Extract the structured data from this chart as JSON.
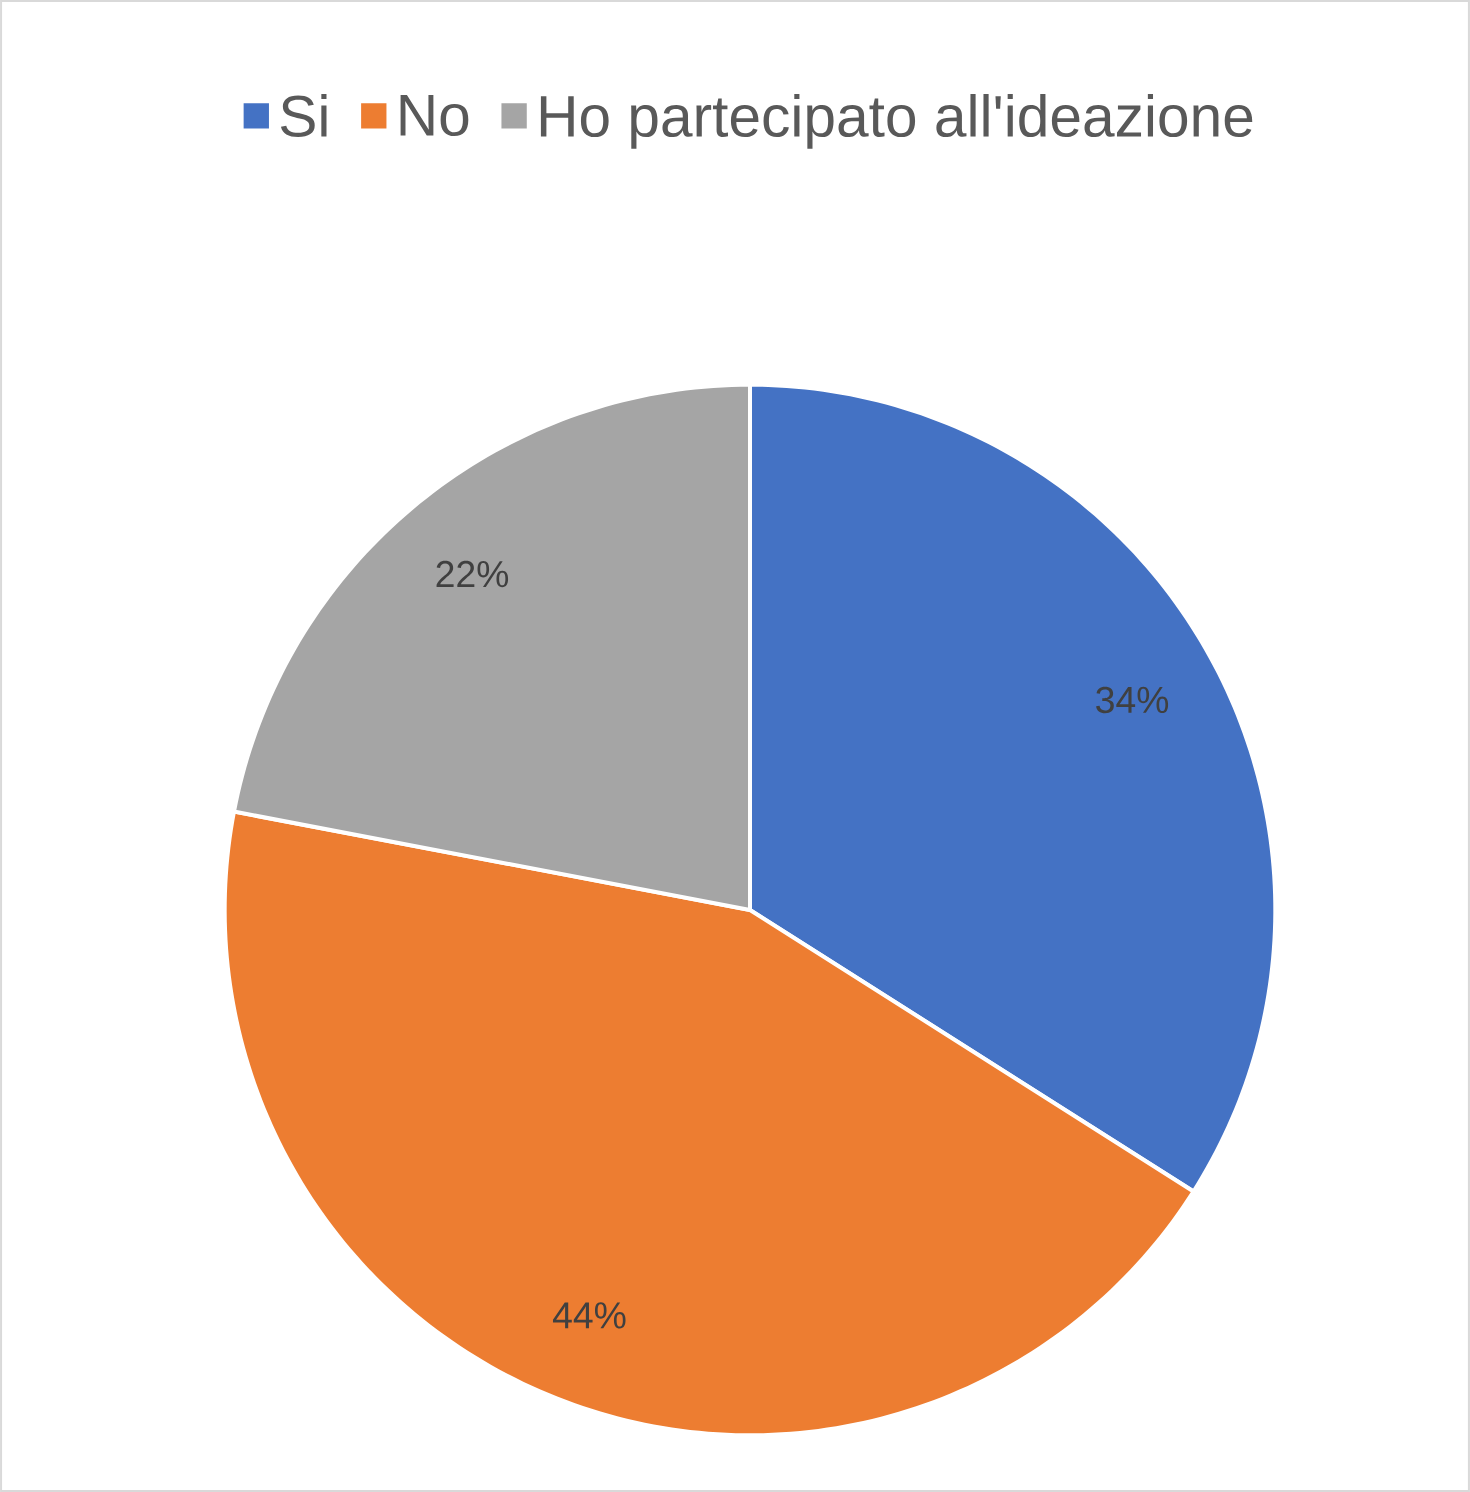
{
  "chart_data": {
    "type": "pie",
    "categories": [
      "Si",
      "No",
      "Ho partecipato all'ideazione"
    ],
    "values": [
      34,
      44,
      22
    ],
    "colors": [
      "#4472c4",
      "#ed7d31",
      "#a5a5a5"
    ],
    "value_labels": [
      "34%",
      "44%",
      "22%"
    ],
    "legend": "top"
  }
}
